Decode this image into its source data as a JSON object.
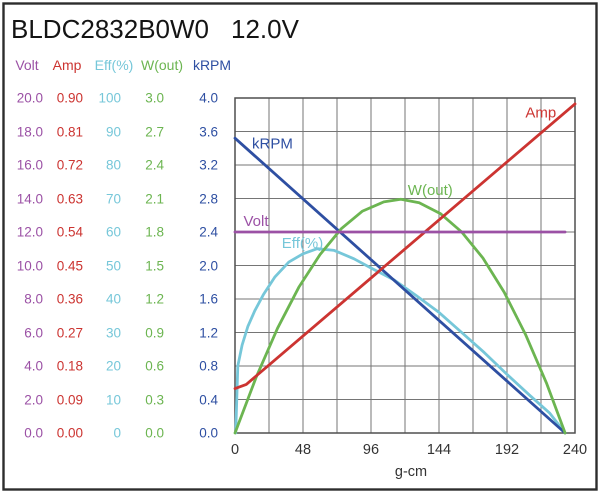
{
  "title": {
    "model": "BLDC2832B0W0",
    "voltage": "12.0V"
  },
  "table": {
    "headers": [
      {
        "label": "Volt",
        "color": "#9B51A5"
      },
      {
        "label": "Amp",
        "color": "#CC3431"
      },
      {
        "label": "Eff(%)",
        "color": "#76C7D9"
      },
      {
        "label": "W(out)",
        "color": "#6CB551"
      },
      {
        "label": "kRPM",
        "color": "#2E4FA2"
      }
    ],
    "rows": [
      [
        "20.0",
        "0.90",
        "100",
        "3.0",
        "4.0"
      ],
      [
        "18.0",
        "0.81",
        "90",
        "2.7",
        "3.6"
      ],
      [
        "16.0",
        "0.72",
        "80",
        "2.4",
        "3.2"
      ],
      [
        "14.0",
        "0.63",
        "70",
        "2.1",
        "2.8"
      ],
      [
        "12.0",
        "0.54",
        "60",
        "1.8",
        "2.4"
      ],
      [
        "10.0",
        "0.45",
        "50",
        "1.5",
        "2.0"
      ],
      [
        "8.0",
        "0.36",
        "40",
        "1.2",
        "1.6"
      ],
      [
        "6.0",
        "0.27",
        "30",
        "0.9",
        "1.2"
      ],
      [
        "4.0",
        "0.18",
        "20",
        "0.6",
        "0.8"
      ],
      [
        "2.0",
        "0.09",
        "10",
        "0.3",
        "0.4"
      ],
      [
        "0.0",
        "0.00",
        "0",
        "0.0",
        "0.0"
      ]
    ]
  },
  "chart_data": {
    "type": "line",
    "title": "BLDC2832B0W0 12.0V motor performance",
    "xlabel": "g-cm",
    "x_ticks": [
      "0",
      "48",
      "96",
      "144",
      "192",
      "240"
    ],
    "xlim": [
      0,
      240
    ],
    "ylim": [
      0,
      4.0
    ],
    "grid": true,
    "y_axis_note": "normalized 0-4.0 axis; per-series scales given by table columns (Volt 0-20, Amp 0-0.90, Eff 0-100, W 0-3.0, kRPM 0-4.0)",
    "series": [
      {
        "name": "Eff(%)",
        "color": "#76C7D9",
        "label_pos": [
          33,
          2.21
        ],
        "points": [
          [
            0.5,
            0
          ],
          [
            2,
            0.8
          ],
          [
            5,
            1.05
          ],
          [
            9,
            1.27
          ],
          [
            14,
            1.46
          ],
          [
            20,
            1.65
          ],
          [
            28,
            1.86
          ],
          [
            38,
            2.04
          ],
          [
            48,
            2.14
          ],
          [
            58,
            2.2
          ],
          [
            70,
            2.18
          ],
          [
            84,
            2.08
          ],
          [
            96,
            1.97
          ],
          [
            112,
            1.83
          ],
          [
            128,
            1.64
          ],
          [
            144,
            1.44
          ],
          [
            160,
            1.2
          ],
          [
            176,
            0.96
          ],
          [
            192,
            0.7
          ],
          [
            208,
            0.45
          ],
          [
            222,
            0.24
          ],
          [
            233,
            0
          ]
        ]
      },
      {
        "name": "kRPM",
        "color": "#2E4FA2",
        "label_pos": [
          12,
          3.4
        ],
        "points": [
          [
            0,
            3.52
          ],
          [
            233,
            0
          ]
        ]
      },
      {
        "name": "W(out)",
        "color": "#6CB551",
        "label_pos": [
          122,
          2.84
        ],
        "points": [
          [
            0,
            0
          ],
          [
            15,
            0.67
          ],
          [
            30,
            1.25
          ],
          [
            45,
            1.74
          ],
          [
            60,
            2.13
          ],
          [
            75,
            2.44
          ],
          [
            90,
            2.65
          ],
          [
            105,
            2.76
          ],
          [
            117,
            2.79
          ],
          [
            130,
            2.75
          ],
          [
            145,
            2.62
          ],
          [
            160,
            2.4
          ],
          [
            175,
            2.09
          ],
          [
            190,
            1.68
          ],
          [
            205,
            1.18
          ],
          [
            220,
            0.59
          ],
          [
            233,
            0
          ]
        ]
      },
      {
        "name": "Amp",
        "color": "#CC3431",
        "label_pos": [
          205,
          3.77
        ],
        "points": [
          [
            0,
            0.53
          ],
          [
            8,
            0.58
          ],
          [
            240,
            3.93
          ]
        ]
      },
      {
        "name": "Volt",
        "color": "#9B51A5",
        "label_pos": [
          6,
          2.47
        ],
        "points": [
          [
            0,
            2.4
          ],
          [
            233,
            2.4
          ]
        ]
      }
    ]
  }
}
